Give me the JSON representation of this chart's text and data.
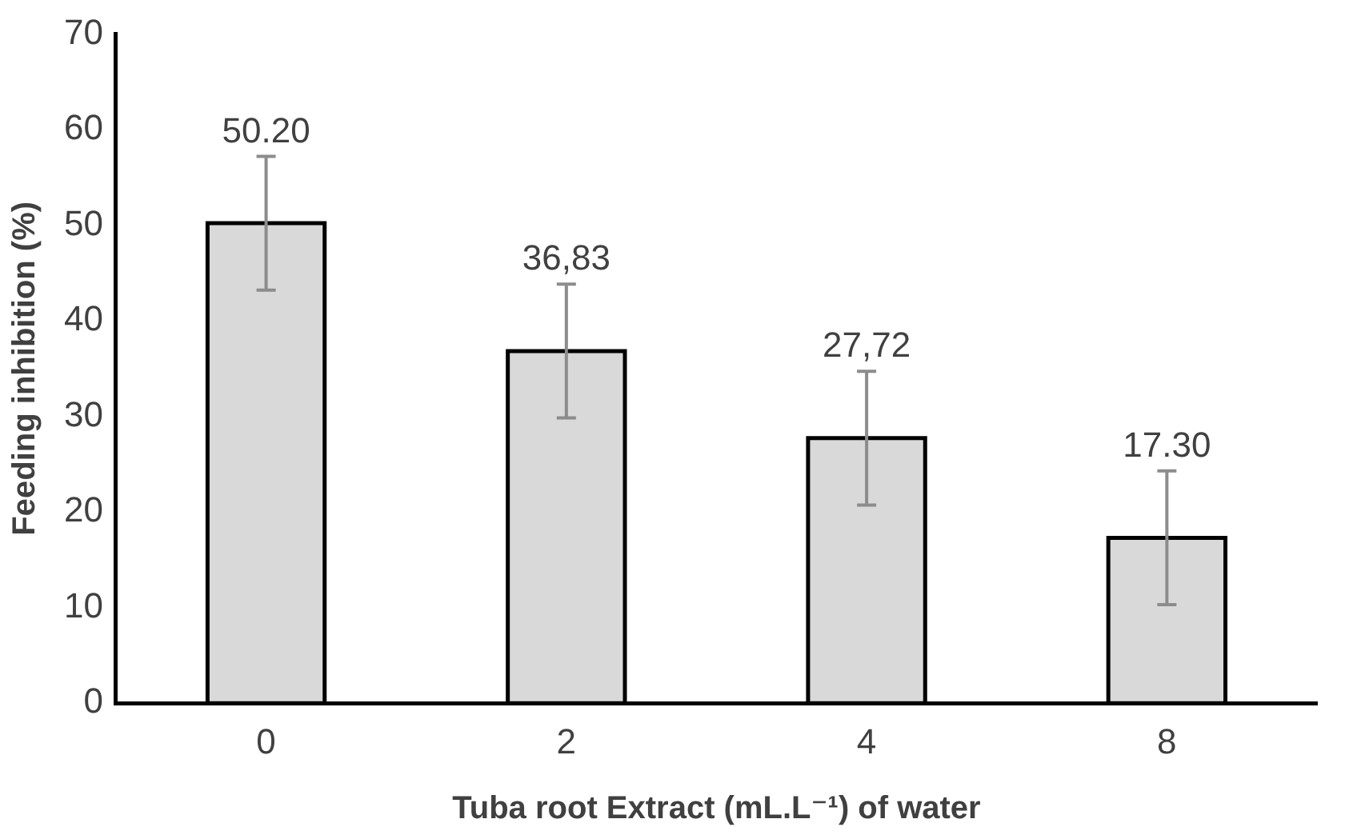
{
  "chart_data": {
    "type": "bar",
    "xlabel": "Tuba root Extract (mL.L⁻¹) of water",
    "ylabel": "Feeding inhibition (%)",
    "categories": [
      "0",
      "2",
      "4",
      "8"
    ],
    "values": [
      50.2,
      36.83,
      27.72,
      17.3
    ],
    "value_labels": [
      "50.20",
      "36,83",
      "27,72",
      "17.30"
    ],
    "errors": [
      7,
      7,
      7,
      7
    ],
    "color": "#d9d9d9",
    "ylim": [
      0,
      70
    ],
    "yticks": [
      0,
      10,
      20,
      30,
      40,
      50,
      60,
      70
    ],
    "grid": false,
    "legend": false
  }
}
